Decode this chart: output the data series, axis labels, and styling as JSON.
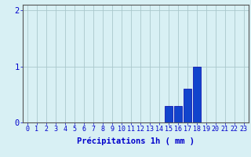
{
  "hours": [
    0,
    1,
    2,
    3,
    4,
    5,
    6,
    7,
    8,
    9,
    10,
    11,
    12,
    13,
    14,
    15,
    16,
    17,
    18,
    19,
    20,
    21,
    22,
    23
  ],
  "values": [
    0,
    0,
    0,
    0,
    0,
    0,
    0,
    0,
    0,
    0,
    0,
    0,
    0,
    0,
    0,
    0.3,
    0.3,
    0.6,
    1.0,
    0,
    0,
    0,
    0,
    0
  ],
  "bar_color": "#1144cc",
  "bar_edge_color": "#0000aa",
  "background_color": "#d8f0f4",
  "grid_color": "#aac8cc",
  "axis_color": "#555555",
  "text_color": "#0000cc",
  "xlabel": "Précipitations 1h ( mm )",
  "ylim": [
    0,
    2.1
  ],
  "yticks": [
    0,
    1,
    2
  ],
  "xlim": [
    -0.5,
    23.5
  ],
  "xlabel_fontsize": 7.5,
  "tick_fontsize": 6.0
}
